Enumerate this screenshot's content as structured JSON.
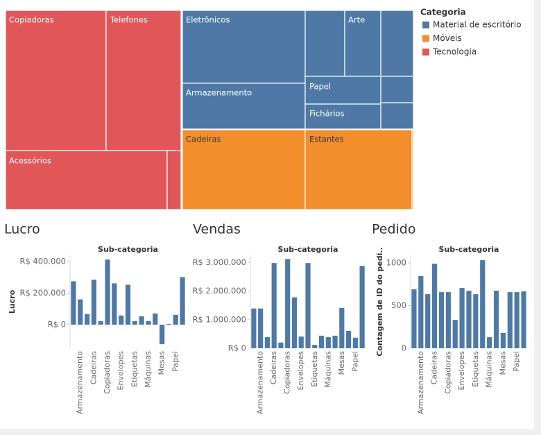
{
  "treemap": {
    "tiles": [
      "Copiadoras",
      "Telefones",
      "Acessórios",
      "Eletrônicos",
      "Arte",
      "Armazenamento",
      "Papel",
      "Fichários",
      "Cadeiras",
      "Estantes"
    ]
  },
  "legend": {
    "title": "Categoria",
    "entries": [
      {
        "name": "Material de escritório",
        "color": "#4e79a7"
      },
      {
        "name": "Móveis",
        "color": "#f28e2b"
      },
      {
        "name": "Tecnologia",
        "color": "#e15759"
      }
    ]
  },
  "chart_data": [
    {
      "type": "bar",
      "title": "Lucro",
      "header": "Sub-categoria",
      "ylabel": "Lucro",
      "color": "#4e79a7",
      "categories": [
        null,
        "Armazenamento",
        null,
        "Cadeiras",
        null,
        "Copiadoras",
        null,
        "Envelopes",
        null,
        "Etiquetas",
        null,
        "Máquinas",
        null,
        "Mesas",
        null,
        "Papel",
        null
      ],
      "values": [
        275000,
        160000,
        67000,
        285000,
        22000,
        413000,
        262000,
        58000,
        253000,
        22000,
        53000,
        22000,
        71000,
        -124000,
        4000,
        62000,
        302000
      ],
      "ylim": [
        -150000,
        440000
      ],
      "yticks": [
        {
          "value": 0,
          "label": "R$ 0"
        },
        {
          "value": 200000,
          "label": "R$ 200.000"
        },
        {
          "value": 400000,
          "label": "R$ 400.000"
        }
      ]
    },
    {
      "type": "bar",
      "title": "Vendas",
      "header": "Sub-categoria",
      "color": "#4e79a7",
      "categories": [
        null,
        "Armazenamento",
        null,
        "Cadeiras",
        null,
        "Copiadoras",
        null,
        "Envelopes",
        null,
        "Etiquetas",
        null,
        "Máquinas",
        null,
        "Mesas",
        null,
        "Papel",
        null
      ],
      "values": [
        1390000,
        1390000,
        390000,
        2980000,
        200000,
        3120000,
        1780000,
        410000,
        2980000,
        120000,
        440000,
        390000,
        440000,
        1410000,
        610000,
        370000,
        2880000
      ],
      "ylim": [
        0,
        3250000
      ],
      "yticks": [
        {
          "value": 0,
          "label": "R$ 0"
        },
        {
          "value": 1000000,
          "label": "R$ 1.000.000"
        },
        {
          "value": 2000000,
          "label": "R$ 2.000.000"
        },
        {
          "value": 3000000,
          "label": "R$ 3.000.000"
        }
      ]
    },
    {
      "type": "bar",
      "title": "Pedido",
      "header": "Sub-categoria",
      "ylabel": "Contagem de ID do pedi..",
      "color": "#4e79a7",
      "categories": [
        null,
        "Armazenamento",
        null,
        "Cadeiras",
        null,
        "Copiadoras",
        null,
        "Envelopes",
        null,
        "Etiquetas",
        null,
        "Máquinas",
        null,
        "Mesas",
        null,
        "Papel",
        null
      ],
      "values": [
        691,
        846,
        634,
        992,
        658,
        658,
        333,
        707,
        675,
        634,
        1033,
        130,
        675,
        179,
        658,
        658,
        667
      ],
      "ylim": [
        0,
        1090
      ],
      "yticks": [
        0,
        500,
        1000
      ]
    }
  ]
}
